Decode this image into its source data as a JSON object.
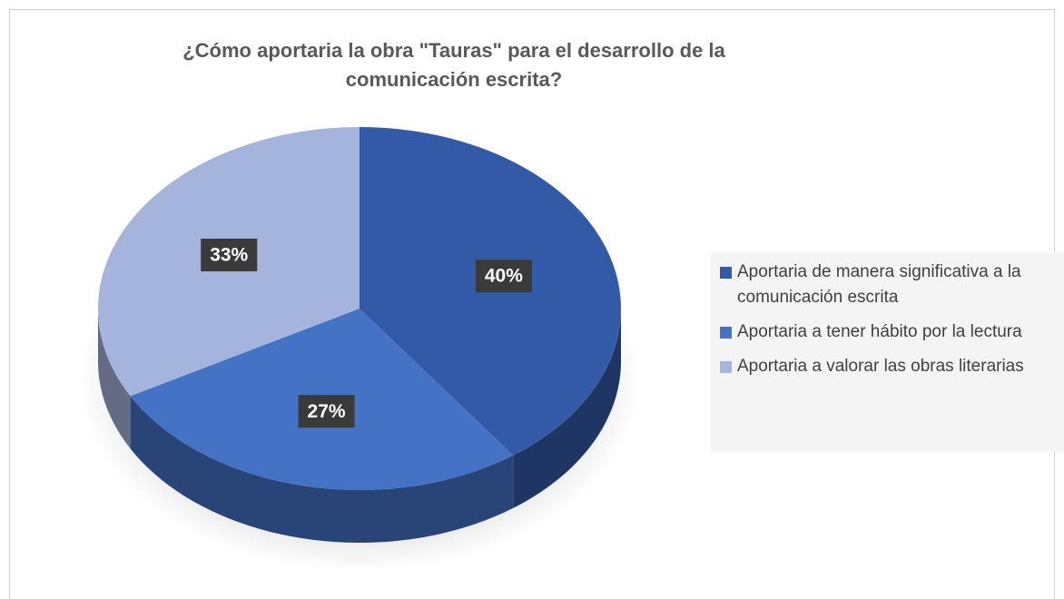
{
  "chart_data": {
    "type": "pie",
    "title": "¿Cómo aportaria la obra \"Tauras\" para el desarrollo de la comunicación escrita?",
    "categories": [
      "Aportaria de manera significativa a la comunicación escrita",
      "Aportaria a tener hábito por la lectura",
      "Aportaria a valorar las obras literarias"
    ],
    "values": [
      40,
      27,
      33
    ],
    "value_labels": [
      "40%",
      "27%",
      "33%"
    ],
    "colors": [
      "#335aa6",
      "#4472c4",
      "#a5b4dc"
    ],
    "legend": "right"
  }
}
